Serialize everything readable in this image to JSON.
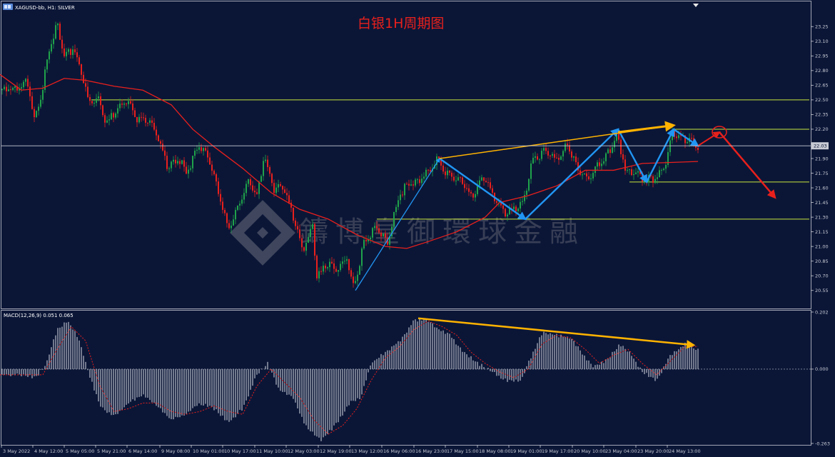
{
  "header": {
    "symbol_text": "XAGUSD-bb, H1:  SILVER",
    "title": "白银1H周期图"
  },
  "watermark": {
    "text": "鑄博皇御環球金融"
  },
  "colors": {
    "background": "#0b1637",
    "bull_candle": "#1fa24a",
    "bear_candle": "#e8201c",
    "moving_average": "#e8201c",
    "support_resistance_lines": "#c8e83c",
    "trend_arrows": "#2196f3",
    "divergence_lines": "#ffb300",
    "forecast_arrow": "#e8201c",
    "macd_histogram": "#b8bcc8",
    "macd_signal": "#e8201c"
  },
  "chart_data": [
    {
      "type": "candlestick",
      "title": "白银1H周期图",
      "symbol": "XAGUSD-bb, H1:  SILVER",
      "ylim": [
        20.38,
        23.42
      ],
      "y_ticks": [
        "23.25",
        "23.10",
        "22.95",
        "22.80",
        "22.65",
        "22.50",
        "22.35",
        "22.20",
        "22.05",
        "21.90",
        "21.75",
        "21.60",
        "21.45",
        "21.30",
        "21.15",
        "21.00",
        "20.85",
        "20.70",
        "20.55"
      ],
      "current_price": "22.03",
      "x_ticks": [
        "3 May 2022",
        "4 May 12:00",
        "5 May 05:00",
        "5 May 21:00",
        "6 May 14:00",
        "9 May 08:00",
        "10 May 01:00",
        "10 May 17:00",
        "11 May 10:00",
        "12 May 03:00",
        "12 May 19:00",
        "13 May 12:00",
        "16 May 06:00",
        "16 May 23:00",
        "17 May 15:00",
        "18 May 08:00",
        "19 May 01:00",
        "19 May 17:00",
        "20 May 10:00",
        "23 May 04:00",
        "23 May 20:00",
        "24 May 13:00"
      ],
      "price_path": [
        [
          0,
          22.6
        ],
        [
          12,
          22.62
        ],
        [
          22,
          22.6
        ],
        [
          40,
          22.7
        ],
        [
          50,
          22.3
        ],
        [
          60,
          22.55
        ],
        [
          70,
          23.0
        ],
        [
          82,
          23.28
        ],
        [
          92,
          22.95
        ],
        [
          104,
          23.02
        ],
        [
          116,
          22.8
        ],
        [
          126,
          22.45
        ],
        [
          140,
          22.5
        ],
        [
          150,
          22.25
        ],
        [
          166,
          22.4
        ],
        [
          180,
          22.5
        ],
        [
          196,
          22.28
        ],
        [
          210,
          22.3
        ],
        [
          224,
          22.1
        ],
        [
          236,
          21.82
        ],
        [
          252,
          21.9
        ],
        [
          264,
          21.75
        ],
        [
          280,
          22.05
        ],
        [
          292,
          21.95
        ],
        [
          308,
          21.55
        ],
        [
          322,
          21.18
        ],
        [
          336,
          21.4
        ],
        [
          350,
          21.68
        ],
        [
          362,
          21.52
        ],
        [
          372,
          21.92
        ],
        [
          386,
          21.58
        ],
        [
          398,
          21.62
        ],
        [
          412,
          21.32
        ],
        [
          426,
          20.95
        ],
        [
          440,
          21.2
        ],
        [
          446,
          20.68
        ],
        [
          460,
          20.82
        ],
        [
          474,
          20.75
        ],
        [
          488,
          20.88
        ],
        [
          498,
          20.55
        ],
        [
          512,
          21.05
        ],
        [
          530,
          21.2
        ],
        [
          546,
          21.05
        ],
        [
          560,
          21.5
        ],
        [
          574,
          21.65
        ],
        [
          590,
          21.68
        ],
        [
          606,
          21.8
        ],
        [
          616,
          21.9
        ],
        [
          630,
          21.72
        ],
        [
          646,
          21.7
        ],
        [
          662,
          21.5
        ],
        [
          680,
          21.7
        ],
        [
          696,
          21.48
        ],
        [
          710,
          21.32
        ],
        [
          724,
          21.38
        ],
        [
          736,
          21.45
        ],
        [
          748,
          21.88
        ],
        [
          766,
          21.98
        ],
        [
          782,
          21.88
        ],
        [
          798,
          22.05
        ],
        [
          812,
          21.78
        ],
        [
          826,
          21.7
        ],
        [
          842,
          21.85
        ],
        [
          856,
          21.98
        ],
        [
          866,
          22.16
        ],
        [
          880,
          21.76
        ],
        [
          892,
          21.78
        ],
        [
          906,
          21.68
        ],
        [
          920,
          21.7
        ],
        [
          934,
          21.82
        ],
        [
          944,
          22.15
        ],
        [
          956,
          22.1
        ],
        [
          970,
          22.08
        ],
        [
          978,
          22.03
        ]
      ],
      "moving_average": [
        [
          0,
          22.76
        ],
        [
          30,
          22.6
        ],
        [
          60,
          22.62
        ],
        [
          90,
          22.72
        ],
        [
          120,
          22.7
        ],
        [
          160,
          22.64
        ],
        [
          200,
          22.6
        ],
        [
          240,
          22.45
        ],
        [
          270,
          22.2
        ],
        [
          300,
          22.02
        ],
        [
          340,
          21.8
        ],
        [
          380,
          21.55
        ],
        [
          420,
          21.38
        ],
        [
          460,
          21.28
        ],
        [
          500,
          21.12
        ],
        [
          540,
          21.0
        ],
        [
          570,
          20.98
        ],
        [
          600,
          21.05
        ],
        [
          640,
          21.15
        ],
        [
          680,
          21.3
        ],
        [
          700,
          21.45
        ],
        [
          740,
          21.52
        ],
        [
          780,
          21.62
        ],
        [
          820,
          21.78
        ],
        [
          860,
          21.78
        ],
        [
          900,
          21.85
        ],
        [
          940,
          21.86
        ],
        [
          978,
          21.87
        ]
      ],
      "horizontal_levels": [
        {
          "price": 22.5,
          "x_start": 128,
          "x_end": 1134
        },
        {
          "price": 22.2,
          "x_start": 944,
          "x_end": 1134
        },
        {
          "price": 21.66,
          "x_start": 882,
          "x_end": 1134
        },
        {
          "price": 21.28,
          "x_start": 528,
          "x_end": 1134
        }
      ],
      "trend_path": [
        [
          498,
          20.55
        ],
        [
          616,
          21.9
        ],
        [
          736,
          21.28
        ],
        [
          866,
          22.2
        ],
        [
          906,
          21.66
        ],
        [
          944,
          22.2
        ],
        [
          978,
          22.03
        ]
      ],
      "divergence_line_price": [
        [
          616,
          21.9
        ],
        [
          944,
          22.24
        ]
      ],
      "forecast_path": [
        [
          978,
          22.03
        ],
        [
          1008,
          22.17
        ],
        [
          1086,
          21.5
        ]
      ],
      "forecast_circle": {
        "x": 1008,
        "price": 22.17
      }
    },
    {
      "type": "macd",
      "label": "MACD(12,26,9) 0.051 0.065",
      "ylim": [
        -0.263,
        0.202
      ],
      "y_ticks": [
        "0.202",
        "0.000",
        "-0.263"
      ],
      "histogram_path": [
        [
          0,
          -0.02
        ],
        [
          30,
          -0.02
        ],
        [
          50,
          -0.03
        ],
        [
          65,
          0.02
        ],
        [
          80,
          0.14
        ],
        [
          95,
          0.17
        ],
        [
          110,
          0.11
        ],
        [
          125,
          -0.02
        ],
        [
          140,
          -0.13
        ],
        [
          160,
          -0.17
        ],
        [
          180,
          -0.12
        ],
        [
          200,
          -0.09
        ],
        [
          220,
          -0.13
        ],
        [
          240,
          -0.18
        ],
        [
          260,
          -0.16
        ],
        [
          280,
          -0.12
        ],
        [
          300,
          -0.14
        ],
        [
          320,
          -0.19
        ],
        [
          340,
          -0.14
        ],
        [
          360,
          -0.02
        ],
        [
          375,
          0.02
        ],
        [
          390,
          -0.07
        ],
        [
          410,
          -0.1
        ],
        [
          430,
          -0.21
        ],
        [
          450,
          -0.25
        ],
        [
          470,
          -0.2
        ],
        [
          490,
          -0.12
        ],
        [
          505,
          -0.1
        ],
        [
          520,
          0.02
        ],
        [
          540,
          0.06
        ],
        [
          560,
          0.1
        ],
        [
          580,
          0.17
        ],
        [
          596,
          0.18
        ],
        [
          610,
          0.15
        ],
        [
          630,
          0.12
        ],
        [
          650,
          0.06
        ],
        [
          670,
          0.02
        ],
        [
          690,
          -0.01
        ],
        [
          710,
          -0.04
        ],
        [
          730,
          -0.04
        ],
        [
          745,
          0.05
        ],
        [
          760,
          0.13
        ],
        [
          780,
          0.12
        ],
        [
          800,
          0.11
        ],
        [
          815,
          0.06
        ],
        [
          830,
          0.01
        ],
        [
          850,
          0.03
        ],
        [
          868,
          0.09
        ],
        [
          885,
          0.05
        ],
        [
          900,
          -0.01
        ],
        [
          920,
          -0.04
        ],
        [
          940,
          0.05
        ],
        [
          960,
          0.09
        ],
        [
          978,
          0.07
        ]
      ],
      "signal_path": [
        [
          0,
          -0.02
        ],
        [
          30,
          -0.02
        ],
        [
          60,
          -0.02
        ],
        [
          80,
          0.07
        ],
        [
          100,
          0.15
        ],
        [
          120,
          0.1
        ],
        [
          140,
          -0.06
        ],
        [
          160,
          -0.15
        ],
        [
          180,
          -0.14
        ],
        [
          200,
          -0.12
        ],
        [
          220,
          -0.12
        ],
        [
          240,
          -0.15
        ],
        [
          260,
          -0.16
        ],
        [
          280,
          -0.15
        ],
        [
          300,
          -0.13
        ],
        [
          320,
          -0.15
        ],
        [
          340,
          -0.16
        ],
        [
          360,
          -0.06
        ],
        [
          380,
          0.0
        ],
        [
          400,
          -0.05
        ],
        [
          420,
          -0.1
        ],
        [
          440,
          -0.18
        ],
        [
          460,
          -0.23
        ],
        [
          480,
          -0.2
        ],
        [
          500,
          -0.14
        ],
        [
          520,
          -0.04
        ],
        [
          540,
          0.04
        ],
        [
          560,
          0.08
        ],
        [
          580,
          0.14
        ],
        [
          600,
          0.17
        ],
        [
          620,
          0.15
        ],
        [
          640,
          0.12
        ],
        [
          660,
          0.06
        ],
        [
          680,
          0.02
        ],
        [
          700,
          -0.01
        ],
        [
          720,
          -0.03
        ],
        [
          740,
          0.0
        ],
        [
          760,
          0.09
        ],
        [
          780,
          0.12
        ],
        [
          800,
          0.11
        ],
        [
          820,
          0.07
        ],
        [
          840,
          0.02
        ],
        [
          860,
          0.05
        ],
        [
          880,
          0.07
        ],
        [
          900,
          0.02
        ],
        [
          920,
          -0.02
        ],
        [
          940,
          0.03
        ],
        [
          960,
          0.08
        ],
        [
          978,
          0.08
        ]
      ],
      "divergence_line": [
        [
          586,
          0.18
        ],
        [
          972,
          0.085
        ]
      ]
    }
  ]
}
